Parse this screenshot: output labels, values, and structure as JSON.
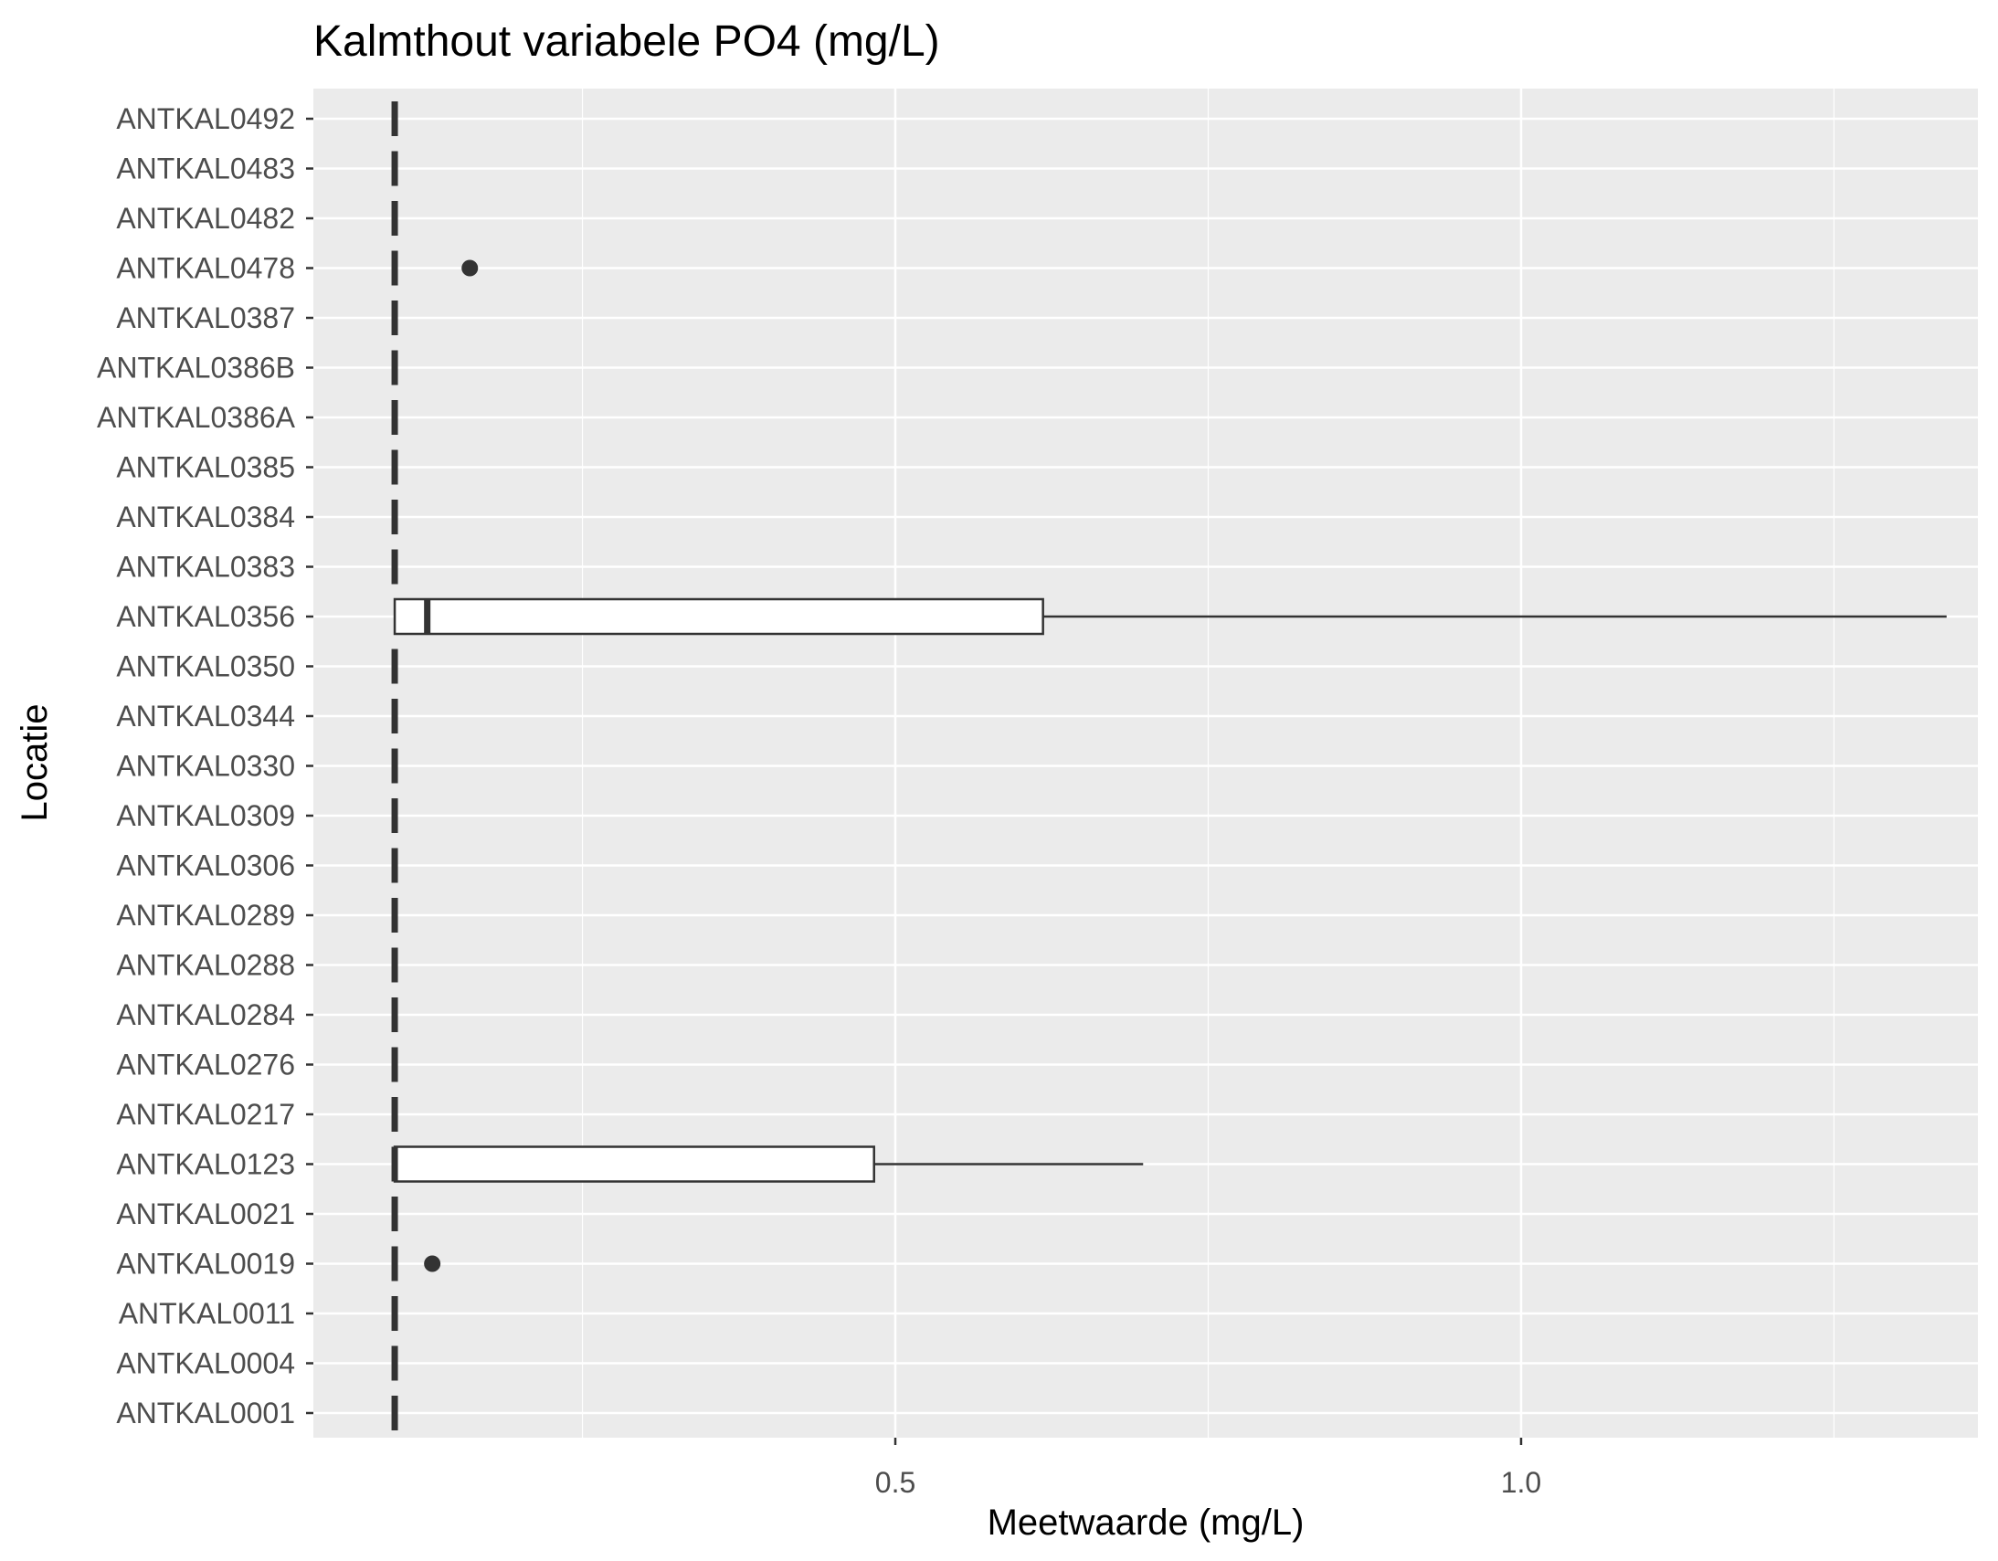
{
  "chart_data": {
    "type": "boxplot",
    "orientation": "horizontal",
    "title": "Kalmthout variabele PO4 (mg/L)",
    "xlabel": "Meetwaarde (mg/L)",
    "ylabel": "Locatie",
    "xlim": [
      0.035,
      1.365
    ],
    "x_ticks": [
      0.5,
      1.0
    ],
    "x_tick_labels": [
      "0.5",
      "1.0"
    ],
    "x_minor_ticks": [
      0.25,
      0.75,
      1.25
    ],
    "grid": true,
    "background": "#ebebeb",
    "grid_color": "#ffffff",
    "box_fill": "#ffffff",
    "line_color": "#333333",
    "categories": [
      "ANTKAL0492",
      "ANTKAL0483",
      "ANTKAL0482",
      "ANTKAL0478",
      "ANTKAL0387",
      "ANTKAL0386B",
      "ANTKAL0386A",
      "ANTKAL0385",
      "ANTKAL0384",
      "ANTKAL0383",
      "ANTKAL0356",
      "ANTKAL0350",
      "ANTKAL0344",
      "ANTKAL0330",
      "ANTKAL0309",
      "ANTKAL0306",
      "ANTKAL0289",
      "ANTKAL0288",
      "ANTKAL0284",
      "ANTKAL0276",
      "ANTKAL0217",
      "ANTKAL0123",
      "ANTKAL0021",
      "ANTKAL0019",
      "ANTKAL0011",
      "ANTKAL0004",
      "ANTKAL0001"
    ],
    "boxes": [
      {
        "category": "ANTKAL0492",
        "min": 0.1,
        "q1": 0.1,
        "median": 0.1,
        "q3": 0.1,
        "max": 0.1,
        "outliers": []
      },
      {
        "category": "ANTKAL0483",
        "min": 0.1,
        "q1": 0.1,
        "median": 0.1,
        "q3": 0.1,
        "max": 0.1,
        "outliers": []
      },
      {
        "category": "ANTKAL0482",
        "min": 0.1,
        "q1": 0.1,
        "median": 0.1,
        "q3": 0.1,
        "max": 0.1,
        "outliers": []
      },
      {
        "category": "ANTKAL0478",
        "min": 0.1,
        "q1": 0.1,
        "median": 0.1,
        "q3": 0.1,
        "max": 0.1,
        "outliers": [
          0.16
        ]
      },
      {
        "category": "ANTKAL0387",
        "min": 0.1,
        "q1": 0.1,
        "median": 0.1,
        "q3": 0.1,
        "max": 0.1,
        "outliers": []
      },
      {
        "category": "ANTKAL0386B",
        "min": 0.1,
        "q1": 0.1,
        "median": 0.1,
        "q3": 0.1,
        "max": 0.1,
        "outliers": []
      },
      {
        "category": "ANTKAL0386A",
        "min": 0.1,
        "q1": 0.1,
        "median": 0.1,
        "q3": 0.1,
        "max": 0.1,
        "outliers": []
      },
      {
        "category": "ANTKAL0385",
        "min": 0.1,
        "q1": 0.1,
        "median": 0.1,
        "q3": 0.1,
        "max": 0.1,
        "outliers": []
      },
      {
        "category": "ANTKAL0384",
        "min": 0.1,
        "q1": 0.1,
        "median": 0.1,
        "q3": 0.1,
        "max": 0.1,
        "outliers": []
      },
      {
        "category": "ANTKAL0383",
        "min": 0.1,
        "q1": 0.1,
        "median": 0.1,
        "q3": 0.1,
        "max": 0.1,
        "outliers": []
      },
      {
        "category": "ANTKAL0356",
        "min": 0.1,
        "q1": 0.1,
        "median": 0.126,
        "q3": 0.618,
        "max": 1.34,
        "outliers": []
      },
      {
        "category": "ANTKAL0350",
        "min": 0.1,
        "q1": 0.1,
        "median": 0.1,
        "q3": 0.1,
        "max": 0.1,
        "outliers": []
      },
      {
        "category": "ANTKAL0344",
        "min": 0.1,
        "q1": 0.1,
        "median": 0.1,
        "q3": 0.1,
        "max": 0.1,
        "outliers": []
      },
      {
        "category": "ANTKAL0330",
        "min": 0.1,
        "q1": 0.1,
        "median": 0.1,
        "q3": 0.1,
        "max": 0.1,
        "outliers": []
      },
      {
        "category": "ANTKAL0309",
        "min": 0.1,
        "q1": 0.1,
        "median": 0.1,
        "q3": 0.1,
        "max": 0.1,
        "outliers": []
      },
      {
        "category": "ANTKAL0306",
        "min": 0.1,
        "q1": 0.1,
        "median": 0.1,
        "q3": 0.1,
        "max": 0.1,
        "outliers": []
      },
      {
        "category": "ANTKAL0289",
        "min": 0.1,
        "q1": 0.1,
        "median": 0.1,
        "q3": 0.1,
        "max": 0.1,
        "outliers": []
      },
      {
        "category": "ANTKAL0288",
        "min": 0.1,
        "q1": 0.1,
        "median": 0.1,
        "q3": 0.1,
        "max": 0.1,
        "outliers": []
      },
      {
        "category": "ANTKAL0284",
        "min": 0.1,
        "q1": 0.1,
        "median": 0.1,
        "q3": 0.1,
        "max": 0.1,
        "outliers": []
      },
      {
        "category": "ANTKAL0276",
        "min": 0.1,
        "q1": 0.1,
        "median": 0.1,
        "q3": 0.1,
        "max": 0.1,
        "outliers": []
      },
      {
        "category": "ANTKAL0217",
        "min": 0.1,
        "q1": 0.1,
        "median": 0.1,
        "q3": 0.1,
        "max": 0.1,
        "outliers": []
      },
      {
        "category": "ANTKAL0123",
        "min": 0.1,
        "q1": 0.1,
        "median": 0.1,
        "q3": 0.483,
        "max": 0.698,
        "outliers": []
      },
      {
        "category": "ANTKAL0021",
        "min": 0.1,
        "q1": 0.1,
        "median": 0.1,
        "q3": 0.1,
        "max": 0.1,
        "outliers": []
      },
      {
        "category": "ANTKAL0019",
        "min": 0.1,
        "q1": 0.1,
        "median": 0.1,
        "q3": 0.1,
        "max": 0.1,
        "outliers": [
          0.13
        ]
      },
      {
        "category": "ANTKAL0011",
        "min": 0.1,
        "q1": 0.1,
        "median": 0.1,
        "q3": 0.1,
        "max": 0.1,
        "outliers": []
      },
      {
        "category": "ANTKAL0004",
        "min": 0.1,
        "q1": 0.1,
        "median": 0.1,
        "q3": 0.1,
        "max": 0.1,
        "outliers": []
      },
      {
        "category": "ANTKAL0001",
        "min": 0.1,
        "q1": 0.1,
        "median": 0.1,
        "q3": 0.1,
        "max": 0.1,
        "outliers": []
      }
    ]
  }
}
